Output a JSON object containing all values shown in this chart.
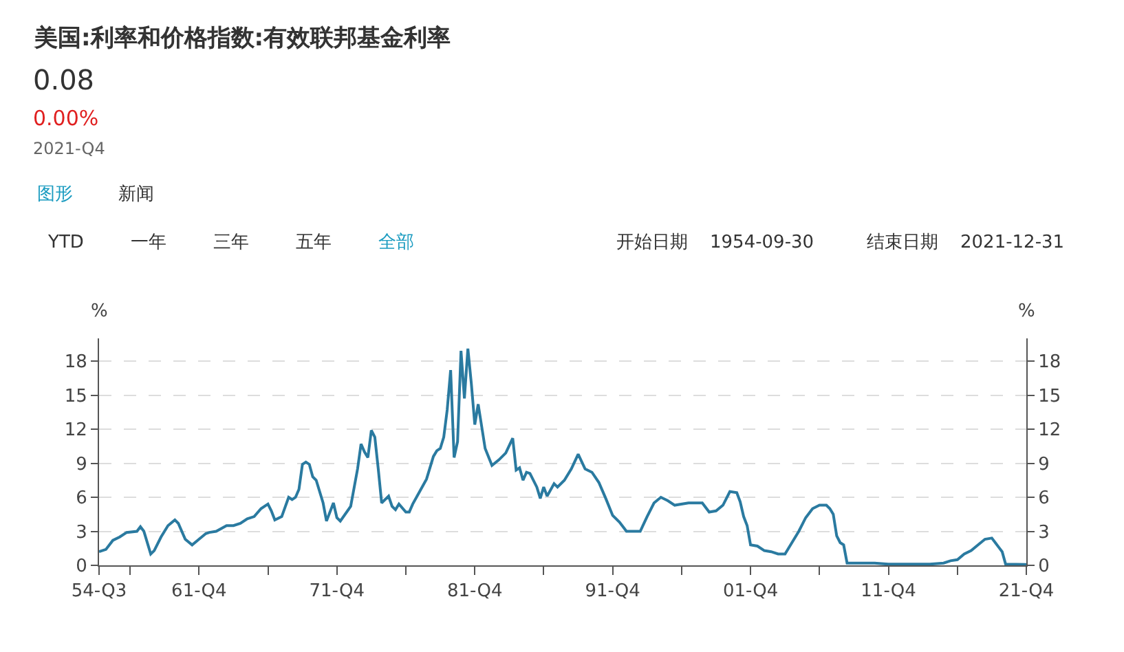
{
  "chart_data": {
    "type": "line",
    "title": "美国:利率和价格指数:有效联邦基金利率",
    "annotations": [
      "0.08",
      "0.00%",
      "2021-Q4",
      "图形",
      "新闻",
      "YTD",
      "一年",
      "三年",
      "五年",
      "全部",
      "开始日期",
      "1954-09-30",
      "结束日期",
      "2021-12-31"
    ],
    "ylabel": "%",
    "y2label": "%",
    "x": [
      "1954-09",
      "1955-03",
      "1955-09",
      "1956-03",
      "1956-09",
      "1957-06",
      "1957-09",
      "1957-12",
      "1958-06",
      "1958-09",
      "1959-03",
      "1959-09",
      "1960-03",
      "1960-06",
      "1960-12",
      "1961-06",
      "1961-12",
      "1962-06",
      "1962-09",
      "1963-03",
      "1963-12",
      "1964-06",
      "1964-12",
      "1965-06",
      "1965-12",
      "1966-06",
      "1966-12",
      "1967-03",
      "1967-06",
      "1967-12",
      "1968-06",
      "1968-09",
      "1968-12",
      "1969-03",
      "1969-06",
      "1969-09",
      "1969-12",
      "1970-03",
      "1970-06",
      "1970-12",
      "1971-03",
      "1971-09",
      "1971-12",
      "1972-03",
      "1972-12",
      "1973-06",
      "1973-09",
      "1973-12",
      "1974-03",
      "1974-06",
      "1974-09",
      "1974-12",
      "1975-03",
      "1975-09",
      "1975-12",
      "1976-03",
      "1976-06",
      "1976-12",
      "1977-03",
      "1977-06",
      "1977-12",
      "1978-06",
      "1978-12",
      "1979-03",
      "1979-06",
      "1979-09",
      "1979-12",
      "1980-03",
      "1980-06",
      "1980-09",
      "1980-12",
      "1981-03",
      "1981-06",
      "1981-09",
      "1981-12",
      "1982-03",
      "1982-09",
      "1983-03",
      "1983-09",
      "1984-03",
      "1984-09",
      "1984-12",
      "1985-03",
      "1985-06",
      "1985-09",
      "1985-12",
      "1986-06",
      "1986-09",
      "1986-12",
      "1987-03",
      "1987-09",
      "1987-12",
      "1988-06",
      "1988-12",
      "1989-06",
      "1989-12",
      "1990-06",
      "1990-12",
      "1991-06",
      "1991-12",
      "1992-06",
      "1992-12",
      "1993-12",
      "1994-06",
      "1994-12",
      "1995-06",
      "1995-12",
      "1996-06",
      "1997-06",
      "1998-06",
      "1998-12",
      "1999-06",
      "1999-12",
      "2000-06",
      "2000-12",
      "2001-03",
      "2001-06",
      "2001-09",
      "2001-12",
      "2002-06",
      "2002-12",
      "2003-06",
      "2003-12",
      "2004-06",
      "2004-12",
      "2005-06",
      "2005-12",
      "2006-06",
      "2006-12",
      "2007-06",
      "2007-09",
      "2007-12",
      "2008-03",
      "2008-06",
      "2008-09",
      "2008-12",
      "2009-06",
      "2010-12",
      "2011-12",
      "2014-12",
      "2015-12",
      "2016-06",
      "2016-12",
      "2017-06",
      "2017-12",
      "2018-06",
      "2018-12",
      "2019-06",
      "2019-09",
      "2019-12",
      "2020-03",
      "2020-06",
      "2021-12"
    ],
    "series": [
      {
        "color": "#2a7aa0",
        "values": [
          1.2,
          1.4,
          2.2,
          2.5,
          2.9,
          3.0,
          3.4,
          3.0,
          1.0,
          1.3,
          2.5,
          3.5,
          4.0,
          3.7,
          2.3,
          1.8,
          2.3,
          2.8,
          2.9,
          3.0,
          3.5,
          3.5,
          3.7,
          4.1,
          4.3,
          5.0,
          5.4,
          4.8,
          4.0,
          4.3,
          6.0,
          5.8,
          6.0,
          6.7,
          8.9,
          9.1,
          8.9,
          7.8,
          7.5,
          5.5,
          3.9,
          5.5,
          4.2,
          3.9,
          5.2,
          8.5,
          10.7,
          10.0,
          9.5,
          11.9,
          11.3,
          8.5,
          5.5,
          6.1,
          5.2,
          4.9,
          5.4,
          4.7,
          4.7,
          5.4,
          6.5,
          7.6,
          9.6,
          10.1,
          10.3,
          11.3,
          13.7,
          17.2,
          9.5,
          10.9,
          18.9,
          14.7,
          19.1,
          16.0,
          12.4,
          14.2,
          10.3,
          8.8,
          9.3,
          9.9,
          11.2,
          8.4,
          8.6,
          7.5,
          8.2,
          8.1,
          6.9,
          5.9,
          6.9,
          6.1,
          7.2,
          6.9,
          7.5,
          8.5,
          9.8,
          8.5,
          8.2,
          7.3,
          5.9,
          4.4,
          3.8,
          3.0,
          3.0,
          4.3,
          5.5,
          6.0,
          5.7,
          5.3,
          5.5,
          5.5,
          4.7,
          4.8,
          5.3,
          6.5,
          6.4,
          5.6,
          4.3,
          3.5,
          1.8,
          1.7,
          1.3,
          1.2,
          1.0,
          1.0,
          2.0,
          3.0,
          4.2,
          5.0,
          5.3,
          5.3,
          5.0,
          4.5,
          2.6,
          2.0,
          1.8,
          0.2,
          0.2,
          0.2,
          0.1,
          0.1,
          0.2,
          0.4,
          0.5,
          1.0,
          1.3,
          1.8,
          2.3,
          2.4,
          2.0,
          1.6,
          1.2,
          0.1,
          0.08
        ]
      }
    ],
    "xlim": [
      "1954-09",
      "2021-12"
    ],
    "xticks": [
      {
        "value": "1954-09",
        "label": "54-Q3"
      },
      {
        "value": "1956-12",
        "label": null
      },
      {
        "value": "1961-12",
        "label": "61-Q4"
      },
      {
        "value": "1966-12",
        "label": null
      },
      {
        "value": "1971-12",
        "label": "71-Q4"
      },
      {
        "value": "1976-12",
        "label": null
      },
      {
        "value": "1981-12",
        "label": "81-Q4"
      },
      {
        "value": "1986-12",
        "label": null
      },
      {
        "value": "1991-12",
        "label": "91-Q4"
      },
      {
        "value": "1996-12",
        "label": null
      },
      {
        "value": "2001-12",
        "label": "01-Q4"
      },
      {
        "value": "2006-12",
        "label": null
      },
      {
        "value": "2011-12",
        "label": "11-Q4"
      },
      {
        "value": "2016-12",
        "label": null
      },
      {
        "value": "2021-12",
        "label": "21-Q4"
      }
    ],
    "ylim": [
      0,
      20
    ],
    "yticks": [
      0,
      3,
      6,
      9,
      12,
      15,
      18
    ],
    "y2lim": [
      0,
      20
    ],
    "y2ticks": [
      0,
      3,
      6,
      9,
      12,
      15,
      18
    ],
    "grid": "y",
    "marker": "none",
    "line_style": "solid"
  }
}
